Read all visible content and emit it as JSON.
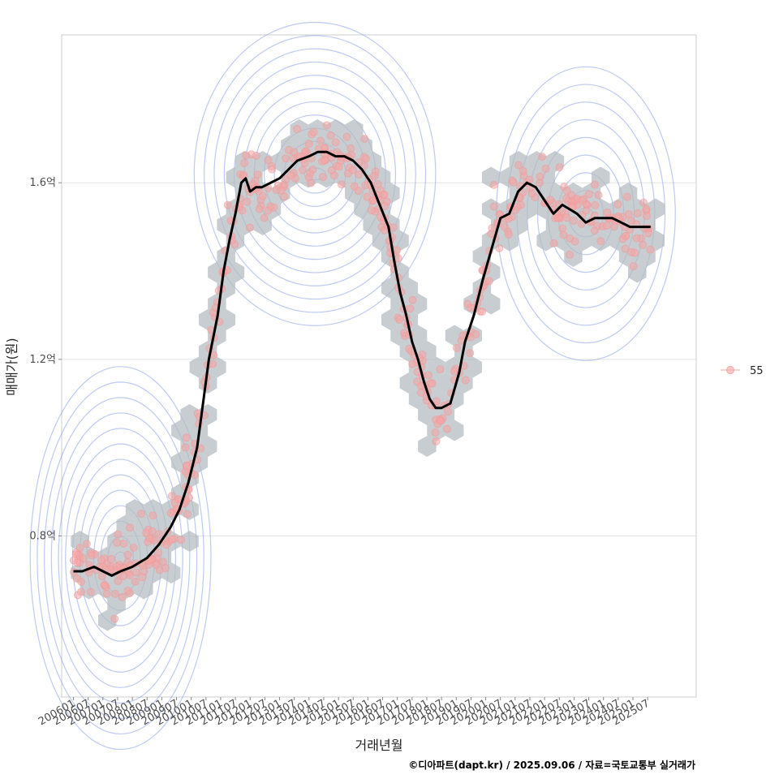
{
  "chart_data": {
    "type": "scatter",
    "title": "",
    "xlabel": "거래년월",
    "ylabel": "매매가(원)",
    "caption": "©디아파트(dapt.kr) / 2025.09.06 / 자료=국토교통부 실거래가",
    "legend": {
      "position": "right",
      "entries": [
        {
          "label": "55",
          "color": "#f4a6a6"
        }
      ]
    },
    "y_ticks": [
      {
        "value": 0.8,
        "label": "0.8억"
      },
      {
        "value": 1.2,
        "label": "1.2억"
      },
      {
        "value": 1.6,
        "label": "1.6억"
      }
    ],
    "x_ticks": [
      "200601",
      "200607",
      "200701",
      "200707",
      "200801",
      "200807",
      "200901",
      "200907",
      "201001",
      "201007",
      "201101",
      "201107",
      "201201",
      "201207",
      "201301",
      "201307",
      "201401",
      "201407",
      "201501",
      "201507",
      "201601",
      "201607",
      "201701",
      "201707",
      "201801",
      "201807",
      "201901",
      "201907",
      "202001",
      "202007",
      "202101",
      "202107",
      "202201",
      "202207",
      "202301",
      "202307",
      "202401",
      "202407",
      "202501",
      "202507"
    ],
    "xlim": [
      2005.6,
      2027.15
    ],
    "ylim": [
      0.435,
      1.935
    ],
    "series": [
      {
        "name": "moving-average",
        "color": "#000000",
        "x": [
          2006.0,
          2006.3,
          2006.7,
          2007.0,
          2007.3,
          2007.6,
          2008.0,
          2008.5,
          2008.9,
          2009.3,
          2009.6,
          2009.9,
          2010.2,
          2010.4,
          2010.6,
          2010.9,
          2011.1,
          2011.3,
          2011.5,
          2011.7,
          2011.85,
          2012.0,
          2012.2,
          2012.4,
          2012.7,
          2013.0,
          2013.3,
          2013.6,
          2014.0,
          2014.3,
          2014.6,
          2014.9,
          2015.2,
          2015.5,
          2015.8,
          2016.1,
          2016.4,
          2016.7,
          2016.9,
          2017.1,
          2017.3,
          2017.5,
          2017.7,
          2017.9,
          2018.1,
          2018.3,
          2018.5,
          2018.8,
          2019.1,
          2019.3,
          2019.6,
          2019.9,
          2020.2,
          2020.5,
          2020.8,
          2021.1,
          2021.4,
          2021.7,
          2022.0,
          2022.3,
          2022.6,
          2022.85,
          2023.1,
          2023.4,
          2023.7,
          2024.0,
          2024.3,
          2024.6,
          2024.9,
          2025.2,
          2025.45,
          2025.6
        ],
        "y": [
          0.72,
          0.72,
          0.73,
          0.72,
          0.71,
          0.72,
          0.73,
          0.75,
          0.78,
          0.82,
          0.86,
          0.92,
          1.0,
          1.1,
          1.2,
          1.3,
          1.4,
          1.47,
          1.53,
          1.6,
          1.61,
          1.58,
          1.59,
          1.59,
          1.6,
          1.61,
          1.63,
          1.65,
          1.66,
          1.67,
          1.67,
          1.66,
          1.66,
          1.65,
          1.63,
          1.6,
          1.55,
          1.5,
          1.42,
          1.35,
          1.3,
          1.24,
          1.2,
          1.15,
          1.11,
          1.09,
          1.09,
          1.1,
          1.17,
          1.24,
          1.3,
          1.38,
          1.45,
          1.52,
          1.53,
          1.58,
          1.6,
          1.59,
          1.56,
          1.53,
          1.55,
          1.54,
          1.53,
          1.51,
          1.52,
          1.52,
          1.52,
          1.51,
          1.5,
          1.5,
          1.5,
          1.5
        ]
      }
    ],
    "overlays": [
      "hexbin-density",
      "2d-density-contours",
      "scatter-points"
    ]
  }
}
